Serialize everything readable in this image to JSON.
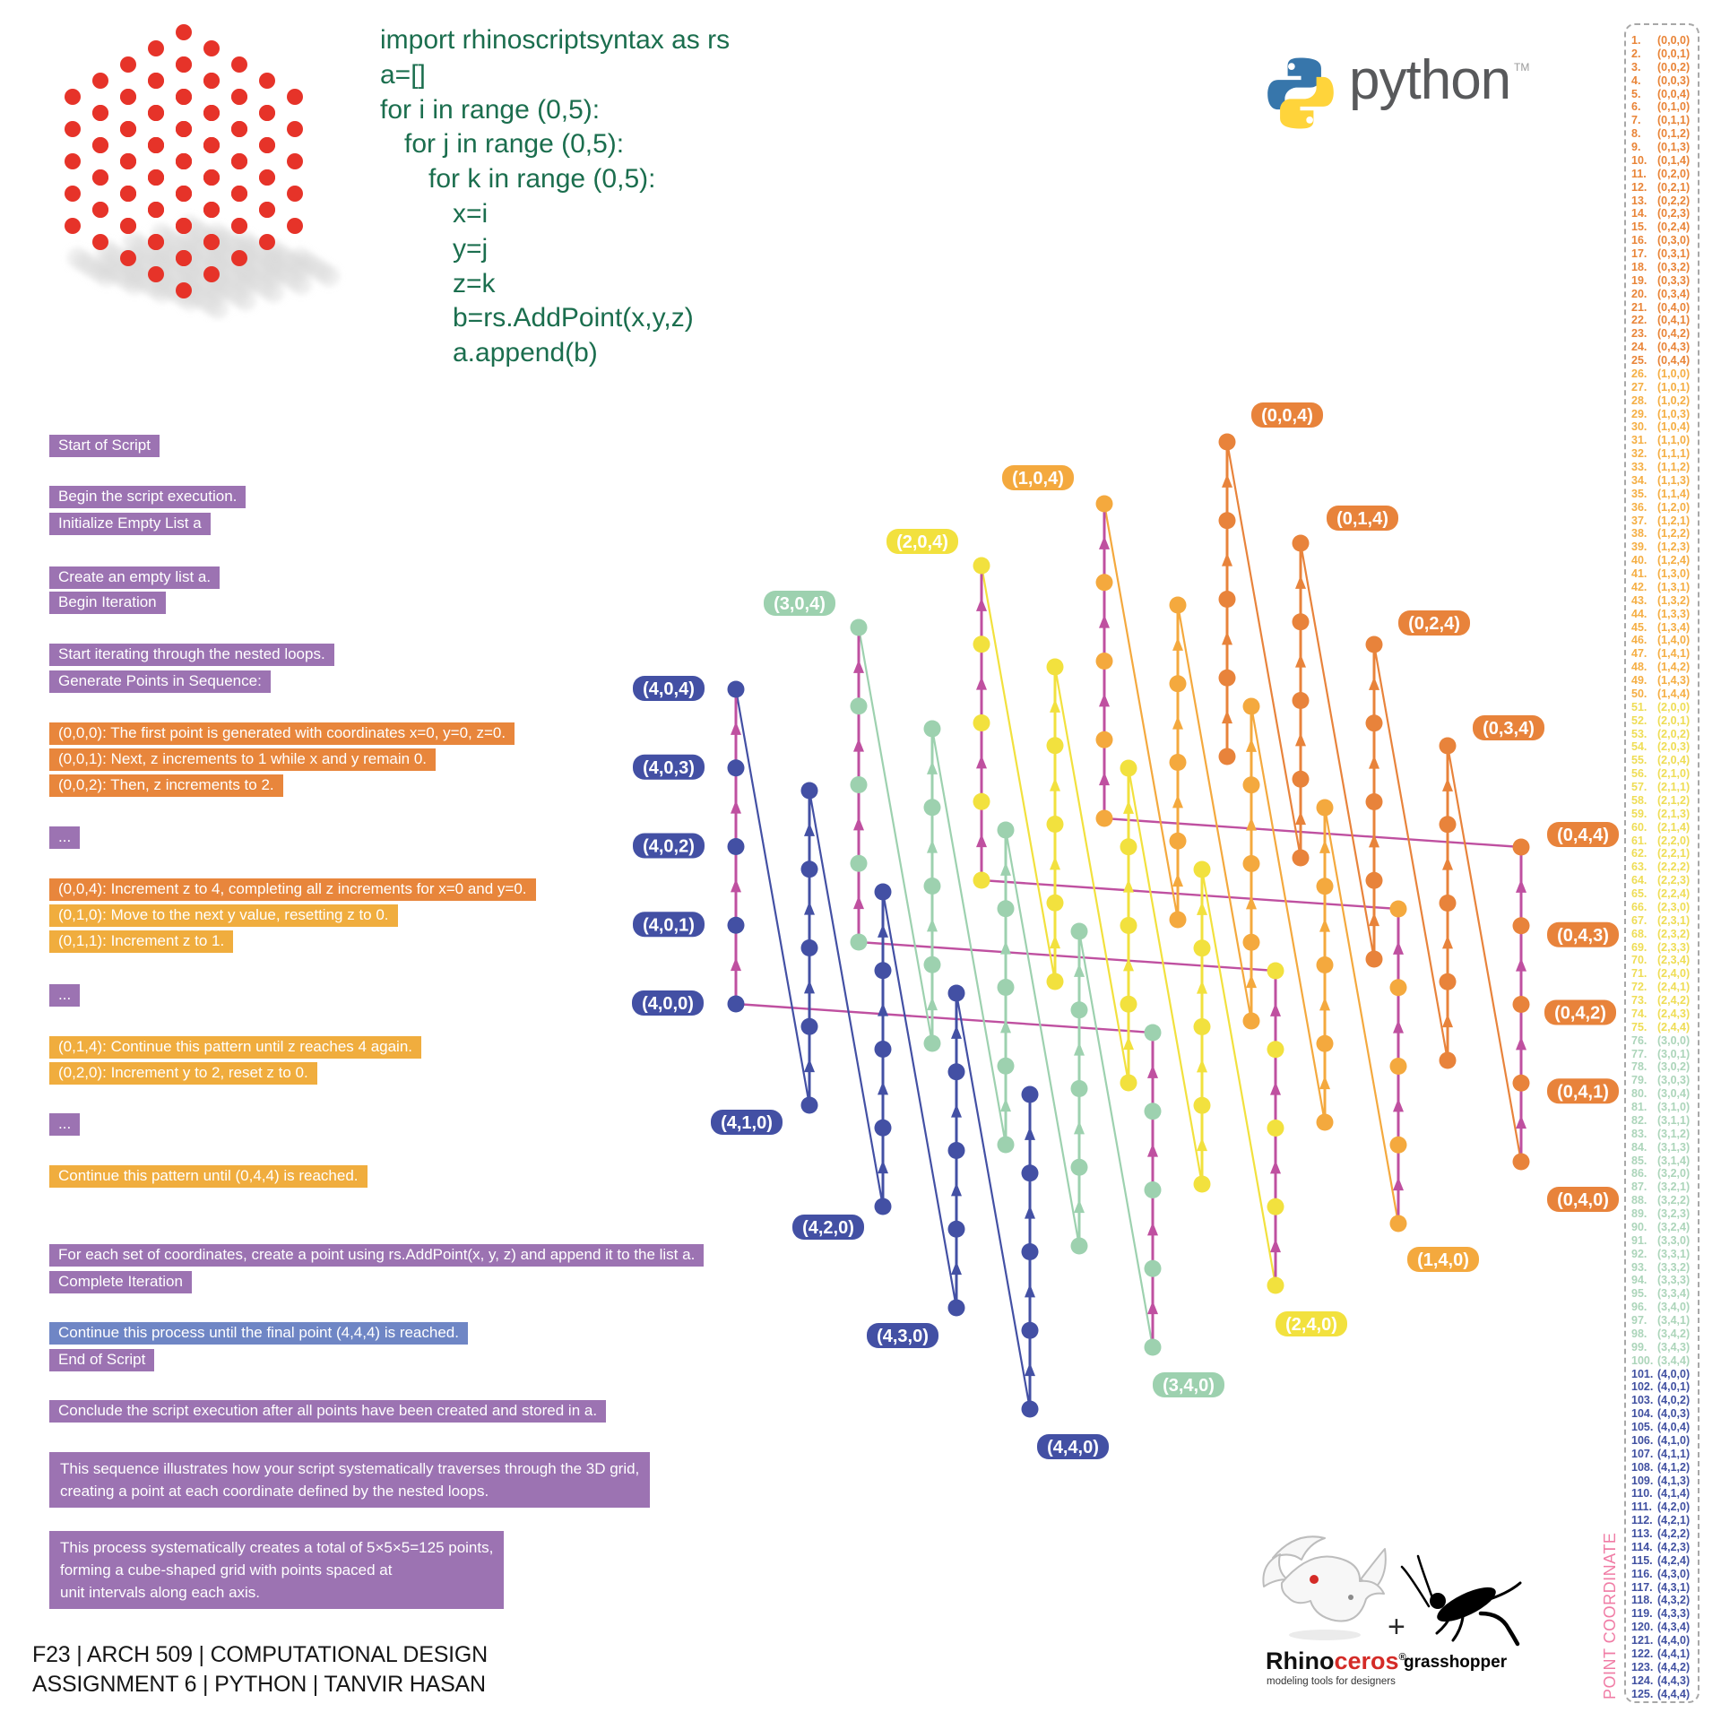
{
  "code_block": {
    "lines": [
      {
        "indent": 0,
        "text": "import rhinoscriptsyntax as rs"
      },
      {
        "indent": 0,
        "text": "a=[]"
      },
      {
        "indent": 0,
        "text": "for i in range (0,5):"
      },
      {
        "indent": 1,
        "text": "for j in range (0,5):"
      },
      {
        "indent": 2,
        "text": "for k in range (0,5):"
      },
      {
        "indent": 3,
        "text": "x=i"
      },
      {
        "indent": 3,
        "text": "y=j"
      },
      {
        "indent": 3,
        "text": "z=k"
      },
      {
        "indent": 3,
        "text": "b=rs.AddPoint(x,y,z)"
      },
      {
        "indent": 3,
        "text": "a.append(b)"
      }
    ]
  },
  "python_logo": {
    "wordmark": "python",
    "tm": "TM",
    "blue": "#3776AB",
    "yellow": "#FFD43B",
    "text_color": "#58595B"
  },
  "steps": [
    {
      "text": "Start of Script",
      "type": "purple"
    },
    {
      "text": "Begin the script execution.",
      "type": "purple"
    },
    {
      "text": "Initialize Empty List a",
      "type": "purple"
    },
    {
      "text": "Create an empty list a.",
      "type": "purple"
    },
    {
      "text": "Begin Iteration",
      "type": "purple"
    },
    {
      "text": "Start iterating through the nested loops.",
      "type": "purple"
    },
    {
      "text": "Generate Points in Sequence:",
      "type": "purple"
    },
    {
      "text": "(0,0,0): The first point is generated with coordinates x=0, y=0, z=0.",
      "type": "orange"
    },
    {
      "text": "(0,0,1): Next, z increments to 1 while x and y remain 0.",
      "type": "orange"
    },
    {
      "text": "(0,0,2): Then, z increments to 2.",
      "type": "orange"
    },
    {
      "text": "...",
      "type": "purple"
    },
    {
      "text": "(0,0,4): Increment z to 4, completing all z increments for x=0 and y=0.",
      "type": "orange"
    },
    {
      "text": "(0,1,0): Move to the next y value, resetting z to 0.",
      "type": "amber"
    },
    {
      "text": "(0,1,1): Increment z to 1.",
      "type": "amber"
    },
    {
      "text": "...",
      "type": "purple"
    },
    {
      "text": "(0,1,4): Continue this pattern until z reaches 4 again.",
      "type": "amber"
    },
    {
      "text": "(0,2,0): Increment y to 2, reset z to 0.",
      "type": "amber"
    },
    {
      "text": "...",
      "type": "purple"
    },
    {
      "text": "Continue this pattern until (0,4,4) is reached.",
      "type": "amber"
    },
    {
      "text": "For each set of coordinates, create a point using rs.AddPoint(x, y, z) and append it to the list a.",
      "type": "purple"
    },
    {
      "text": "Complete Iteration",
      "type": "purple"
    },
    {
      "text": "Continue this process until the final point (4,4,4) is reached.",
      "type": "blue"
    },
    {
      "text": "End of Script",
      "type": "purple"
    },
    {
      "text": "Conclude the script execution after all points have been created and stored in a.",
      "type": "purple"
    },
    {
      "text": "This sequence illustrates how your script systematically traverses through the 3D grid,\ncreating a point at each coordinate defined by the nested loops.",
      "type": "purple",
      "multi": true
    },
    {
      "text": "This process systematically creates a total of 5×5×5=125 points,\nforming a cube-shaped grid with points spaced at\nunit intervals along each axis.",
      "type": "purple",
      "multi": true
    }
  ],
  "footer": {
    "line1": "F23 | ARCH 509 | COMPUTATIONAL DESIGN",
    "line2": "ASSIGNMENT 6 | PYTHON | TANVIR HASAN"
  },
  "point_list": {
    "title": "POINT COORDINATE",
    "coords": [
      "(0,0,0)",
      "(0,0,1)",
      "(0,0,2)",
      "(0,0,3)",
      "(0,0,4)",
      "(0,1,0)",
      "(0,1,1)",
      "(0,1,2)",
      "(0,1,3)",
      "(0,1,4)",
      "(0,2,0)",
      "(0,2,1)",
      "(0,2,2)",
      "(0,2,3)",
      "(0,2,4)",
      "(0,3,0)",
      "(0,3,1)",
      "(0,3,2)",
      "(0,3,3)",
      "(0,3,4)",
      "(0,4,0)",
      "(0,4,1)",
      "(0,4,2)",
      "(0,4,3)",
      "(0,4,4)",
      "(1,0,0)",
      "(1,0,1)",
      "(1,0,2)",
      "(1,0,3)",
      "(1,0,4)",
      "(1,1,0)",
      "(1,1,1)",
      "(1,1,2)",
      "(1,1,3)",
      "(1,1,4)",
      "(1,2,0)",
      "(1,2,1)",
      "(1,2,2)",
      "(1,2,3)",
      "(1,2,4)",
      "(1,3,0)",
      "(1,3,1)",
      "(1,3,2)",
      "(1,3,3)",
      "(1,3,4)",
      "(1,4,0)",
      "(1,4,1)",
      "(1,4,2)",
      "(1,4,3)",
      "(1,4,4)",
      "(2,0,0)",
      "(2,0,1)",
      "(2,0,2)",
      "(2,0,3)",
      "(2,0,4)",
      "(2,1,0)",
      "(2,1,1)",
      "(2,1,2)",
      "(2,1,3)",
      "(2,1,4)",
      "(2,2,0)",
      "(2,2,1)",
      "(2,2,2)",
      "(2,2,3)",
      "(2,2,4)",
      "(2,3,0)",
      "(2,3,1)",
      "(2,3,2)",
      "(2,3,3)",
      "(2,3,4)",
      "(2,4,0)",
      "(2,4,1)",
      "(2,4,2)",
      "(2,4,3)",
      "(2,4,4)",
      "(3,0,0)",
      "(3,0,1)",
      "(3,0,2)",
      "(3,0,3)",
      "(3,0,4)",
      "(3,1,0)",
      "(3,1,1)",
      "(3,1,2)",
      "(3,1,3)",
      "(3,1,4)",
      "(3,2,0)",
      "(3,2,1)",
      "(3,2,2)",
      "(3,2,3)",
      "(3,2,4)",
      "(3,3,0)",
      "(3,3,1)",
      "(3,3,2)",
      "(3,3,3)",
      "(3,3,4)",
      "(3,4,0)",
      "(3,4,1)",
      "(3,4,2)",
      "(3,4,3)",
      "(3,4,4)",
      "(4,0,0)",
      "(4,0,1)",
      "(4,0,2)",
      "(4,0,3)",
      "(4,0,4)",
      "(4,1,0)",
      "(4,1,1)",
      "(4,1,2)",
      "(4,1,3)",
      "(4,1,4)",
      "(4,2,0)",
      "(4,2,1)",
      "(4,2,2)",
      "(4,2,3)",
      "(4,2,4)",
      "(4,3,0)",
      "(4,3,1)",
      "(4,3,2)",
      "(4,3,3)",
      "(4,3,4)",
      "(4,4,0)",
      "(4,4,1)",
      "(4,4,2)",
      "(4,4,3)",
      "(4,4,4)"
    ]
  },
  "diagram": {
    "labels": [
      {
        "t": "(4,0,4)",
        "p": [
          4,
          0,
          4
        ],
        "o": [
          -75,
          -1
        ]
      },
      {
        "t": "(4,0,3)",
        "p": [
          4,
          0,
          3
        ],
        "o": [
          -75,
          -1
        ]
      },
      {
        "t": "(4,0,2)",
        "p": [
          4,
          0,
          2
        ],
        "o": [
          -75,
          -1
        ]
      },
      {
        "t": "(4,0,1)",
        "p": [
          4,
          0,
          1
        ],
        "o": [
          -75,
          -1
        ]
      },
      {
        "t": "(4,0,0)",
        "p": [
          4,
          0,
          0
        ],
        "o": [
          -76,
          -1
        ]
      },
      {
        "t": "(3,0,4)",
        "p": [
          3,
          0,
          4
        ],
        "o": [
          -66,
          -27
        ]
      },
      {
        "t": "(2,0,4)",
        "p": [
          2,
          0,
          4
        ],
        "o": [
          -66,
          -27
        ]
      },
      {
        "t": "(1,0,4)",
        "p": [
          1,
          0,
          4
        ],
        "o": [
          -74,
          -29
        ]
      },
      {
        "t": "(0,0,4)",
        "p": [
          0,
          0,
          4
        ],
        "o": [
          67,
          -30
        ]
      },
      {
        "t": "(0,1,4)",
        "p": [
          0,
          1,
          4
        ],
        "o": [
          69,
          -28
        ]
      },
      {
        "t": "(0,2,4)",
        "p": [
          0,
          2,
          4
        ],
        "o": [
          67,
          -24
        ]
      },
      {
        "t": "(0,3,4)",
        "p": [
          0,
          3,
          4
        ],
        "o": [
          68,
          -20
        ]
      },
      {
        "t": "(0,4,4)",
        "p": [
          0,
          4,
          4
        ],
        "o": [
          69,
          -14
        ]
      },
      {
        "t": "(0,4,3)",
        "p": [
          0,
          4,
          3
        ],
        "o": [
          69,
          10
        ]
      },
      {
        "t": "(0,4,2)",
        "p": [
          0,
          4,
          2
        ],
        "o": [
          66,
          9
        ]
      },
      {
        "t": "(0,4,1)",
        "p": [
          0,
          4,
          1
        ],
        "o": [
          69,
          9
        ]
      },
      {
        "t": "(0,4,0)",
        "p": [
          0,
          4,
          0
        ],
        "o": [
          69,
          42
        ]
      },
      {
        "t": "(4,1,0)",
        "p": [
          4,
          1,
          0
        ],
        "o": [
          -70,
          19
        ]
      },
      {
        "t": "(4,2,0)",
        "p": [
          4,
          2,
          0
        ],
        "o": [
          -61,
          23
        ]
      },
      {
        "t": "(4,3,0)",
        "p": [
          4,
          3,
          0
        ],
        "o": [
          -60,
          31
        ]
      },
      {
        "t": "(4,4,0)",
        "p": [
          4,
          4,
          0
        ],
        "o": [
          48,
          42
        ]
      },
      {
        "t": "(3,4,0)",
        "p": [
          3,
          4,
          0
        ],
        "o": [
          40,
          42
        ]
      },
      {
        "t": "(2,4,0)",
        "p": [
          2,
          4,
          0
        ],
        "o": [
          40,
          43
        ]
      },
      {
        "t": "(1,4,0)",
        "p": [
          1,
          4,
          0
        ],
        "o": [
          50,
          40
        ]
      }
    ]
  },
  "branding": {
    "rhino_black": "Rhino",
    "rhino_red": "ceros",
    "rhino_reg": "®",
    "rhino_tagline": "modeling tools for designers",
    "plus": "+",
    "grasshopper": "grasshopper"
  },
  "colors": {
    "groups": [
      "#E8833B",
      "#F4A93E",
      "#F2E13E",
      "#9DD1AF",
      "#4350A4"
    ],
    "list_groups": [
      "#E98437",
      "#F5AE43",
      "#EFDD55",
      "#ACD5BA",
      "#4050A1"
    ],
    "magenta": "#BF50A0",
    "purple_box": "#9C73B2",
    "orange_box": "#E8863C",
    "amber_box": "#F0AD3E",
    "blue_box": "#6F86C5",
    "code_green": "#1B6E4E",
    "pink_label": "#F07CA5",
    "red_dot": "#E63329"
  }
}
